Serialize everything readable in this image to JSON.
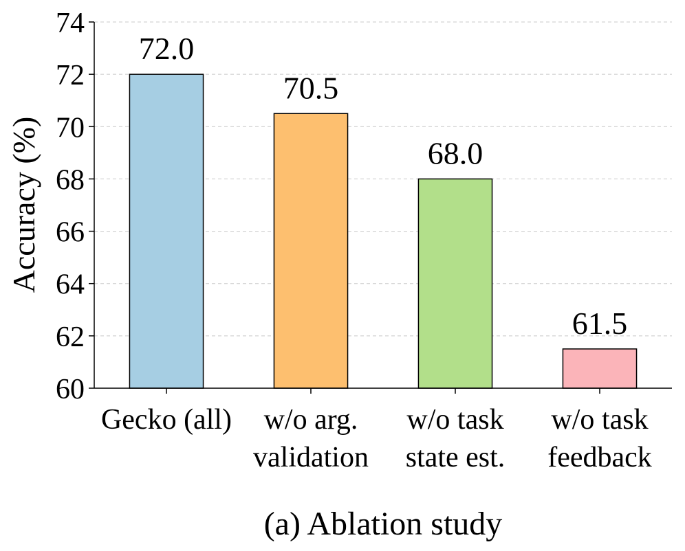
{
  "chart_data": {
    "type": "bar",
    "caption": "(a) Ablation study",
    "ylabel": "Accuracy (%)",
    "xlabel": "",
    "ylim": [
      60,
      74
    ],
    "yticks": [
      60,
      62,
      64,
      66,
      68,
      70,
      72,
      74
    ],
    "grid": "horizontal dashed",
    "categories": [
      [
        "Gecko (all)"
      ],
      [
        "w/o arg.",
        "validation"
      ],
      [
        "w/o task",
        "state est."
      ],
      [
        "w/o task",
        "feedback"
      ]
    ],
    "values": [
      72.0,
      70.5,
      68.0,
      61.5
    ],
    "value_labels": [
      "72.0",
      "70.5",
      "68.0",
      "61.5"
    ],
    "colors": [
      "#a6cee3",
      "#fdbf6f",
      "#b2df8a",
      "#fbb4b9"
    ]
  }
}
